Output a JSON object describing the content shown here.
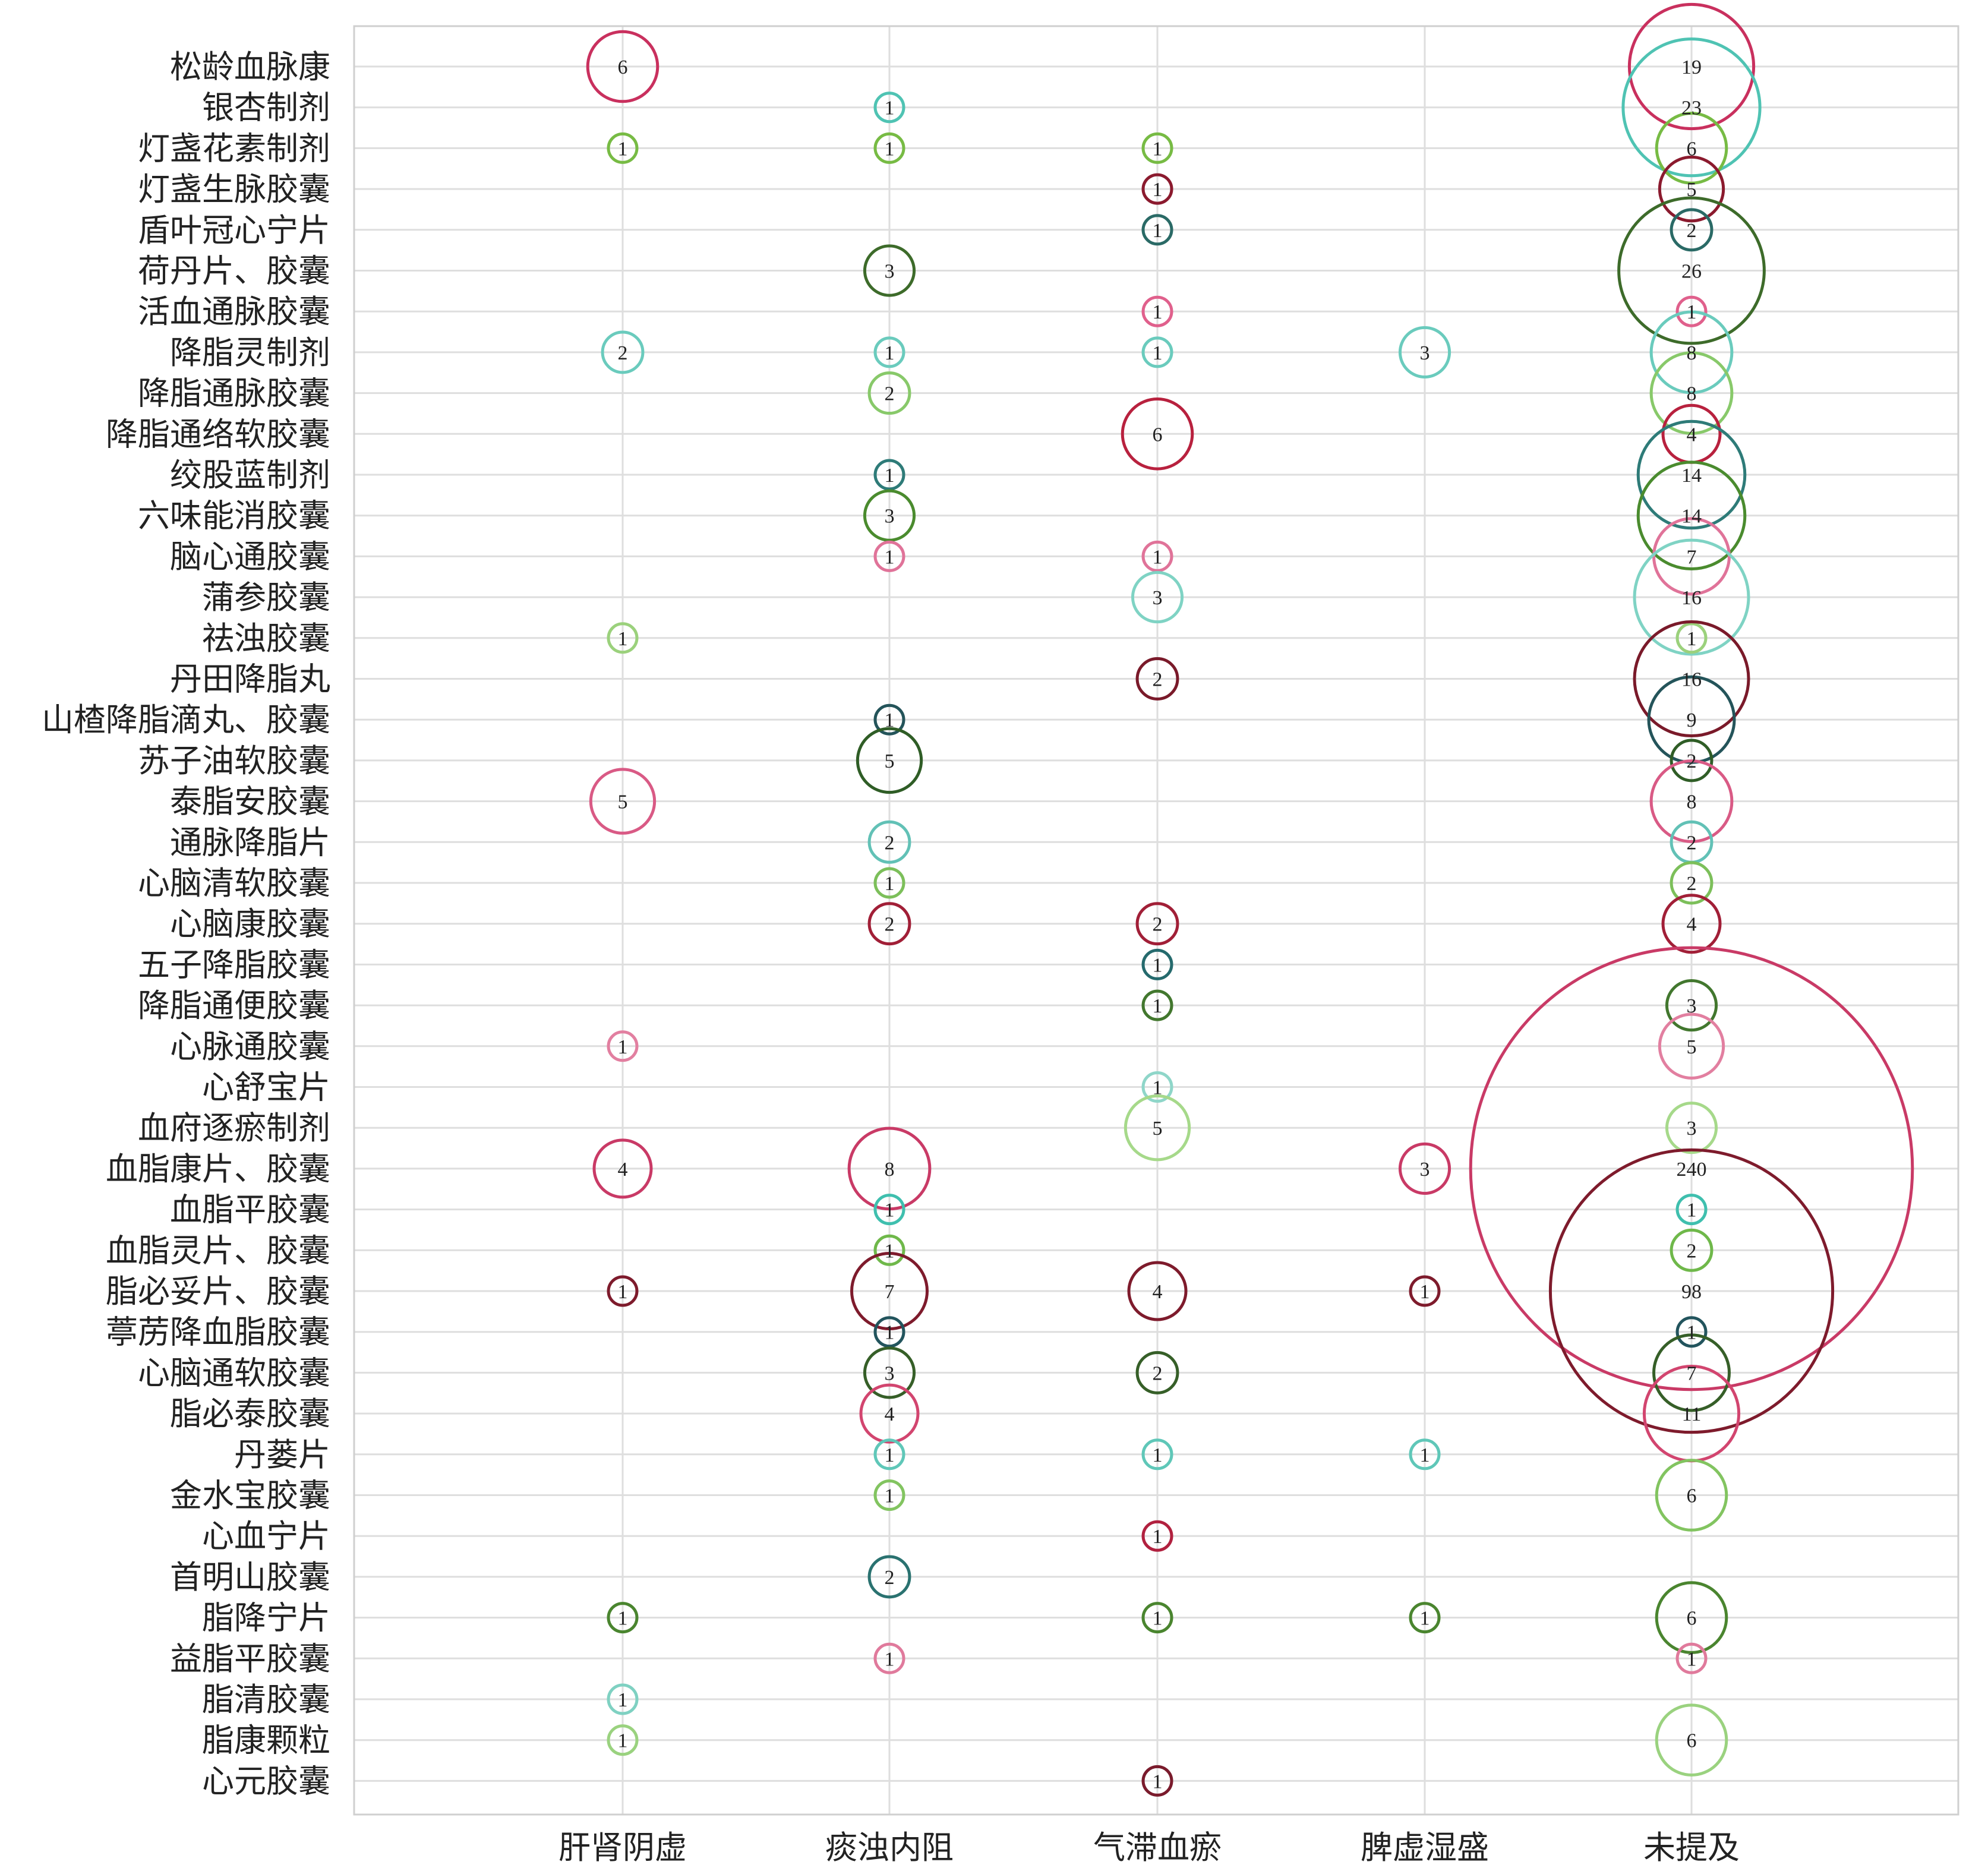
{
  "chart_data": {
    "type": "scatter",
    "subtype": "bubble",
    "title": "",
    "xlabel": "",
    "ylabel": "",
    "categories_x": [
      "肝肾阴虚",
      "痰浊内阻",
      "气滞血瘀",
      "脾虚湿盛",
      "未提及"
    ],
    "categories_y": [
      "松龄血脉康",
      "银杏制剂",
      "灯盏花素制剂",
      "灯盏生脉胶囊",
      "盾叶冠心宁片",
      "荷丹片、胶囊",
      "活血通脉胶囊",
      "降脂灵制剂",
      "降脂通脉胶囊",
      "降脂通络软胶囊",
      "绞股蓝制剂",
      "六味能消胶囊",
      "脑心通胶囊",
      "蒲参胶囊",
      "祛浊胶囊",
      "丹田降脂丸",
      "山楂降脂滴丸、胶囊",
      "苏子油软胶囊",
      "泰脂安胶囊",
      "通脉降脂片",
      "心脑清软胶囊",
      "心脑康胶囊",
      "五子降脂胶囊",
      "降脂通便胶囊",
      "心脉通胶囊",
      "心舒宝片",
      "血府逐瘀制剂",
      "血脂康片、胶囊",
      "血脂平胶囊",
      "血脂灵片、胶囊",
      "脂必妥片、胶囊",
      "葶苈降血脂胶囊",
      "心脑通软胶囊",
      "脂必泰胶囊",
      "丹蒌片",
      "金水宝胶囊",
      "心血宁片",
      "首明山胶囊",
      "脂降宁片",
      "益脂平胶囊",
      "脂清胶囊",
      "脂康颗粒",
      "心元胶囊"
    ],
    "row_colors": [
      "#c9305e",
      "#4fc3b3",
      "#77bb44",
      "#8b1a2e",
      "#2a6a66",
      "#3d6b2a",
      "#e0608c",
      "#6acbbd",
      "#88c96a",
      "#b8213e",
      "#2e7b78",
      "#4a8b2e",
      "#e07399",
      "#7fd3c4",
      "#9bd17c",
      "#7a1a2a",
      "#24545a",
      "#2f5d26",
      "#d95a85",
      "#62c1b6",
      "#7cbf5a",
      "#a11f37",
      "#256a6d",
      "#42772e",
      "#e27fa0",
      "#8fd6c9",
      "#a6d98a",
      "#c93a66",
      "#3fbfae",
      "#6fb84a",
      "#7e1b2c",
      "#22545d",
      "#365f28",
      "#d2456f",
      "#5fc7b8",
      "#82c460",
      "#b1213f",
      "#2a7270",
      "#4a852f",
      "#e07a9c",
      "#7fd1c2",
      "#9ad27f",
      "#7a1b2c"
    ],
    "values": [
      [
        6,
        0,
        0,
        0,
        19
      ],
      [
        0,
        1,
        0,
        0,
        23
      ],
      [
        1,
        1,
        1,
        0,
        6
      ],
      [
        0,
        0,
        1,
        0,
        5
      ],
      [
        0,
        0,
        1,
        0,
        2
      ],
      [
        0,
        3,
        0,
        0,
        26
      ],
      [
        0,
        0,
        1,
        0,
        1
      ],
      [
        2,
        1,
        1,
        3,
        8
      ],
      [
        0,
        2,
        0,
        0,
        8
      ],
      [
        0,
        0,
        6,
        0,
        4
      ],
      [
        0,
        1,
        0,
        0,
        14
      ],
      [
        0,
        3,
        0,
        0,
        14
      ],
      [
        0,
        1,
        1,
        0,
        7
      ],
      [
        0,
        0,
        3,
        0,
        16
      ],
      [
        1,
        0,
        0,
        0,
        1
      ],
      [
        0,
        0,
        2,
        0,
        16
      ],
      [
        0,
        1,
        0,
        0,
        9
      ],
      [
        0,
        5,
        0,
        0,
        2
      ],
      [
        5,
        0,
        0,
        0,
        8
      ],
      [
        0,
        2,
        0,
        0,
        2
      ],
      [
        0,
        1,
        0,
        0,
        2
      ],
      [
        0,
        2,
        2,
        0,
        4
      ],
      [
        0,
        0,
        1,
        0,
        0
      ],
      [
        0,
        0,
        1,
        0,
        3
      ],
      [
        1,
        0,
        0,
        0,
        5
      ],
      [
        0,
        0,
        1,
        0,
        0
      ],
      [
        0,
        0,
        5,
        0,
        3
      ],
      [
        4,
        8,
        0,
        3,
        240
      ],
      [
        0,
        1,
        0,
        0,
        1
      ],
      [
        0,
        1,
        0,
        0,
        2
      ],
      [
        1,
        7,
        4,
        1,
        98
      ],
      [
        0,
        1,
        0,
        0,
        1
      ],
      [
        0,
        3,
        2,
        0,
        7
      ],
      [
        0,
        4,
        0,
        0,
        11
      ],
      [
        0,
        1,
        1,
        1,
        0
      ],
      [
        0,
        1,
        0,
        0,
        6
      ],
      [
        0,
        0,
        1,
        0,
        0
      ],
      [
        0,
        2,
        0,
        0,
        0
      ],
      [
        1,
        0,
        1,
        1,
        6
      ],
      [
        0,
        1,
        0,
        0,
        1
      ],
      [
        1,
        0,
        0,
        0,
        0
      ],
      [
        1,
        0,
        0,
        0,
        6
      ],
      [
        0,
        0,
        1,
        0,
        0
      ]
    ],
    "zero_means_no_bubble": true,
    "grid": true,
    "legend": "none"
  }
}
